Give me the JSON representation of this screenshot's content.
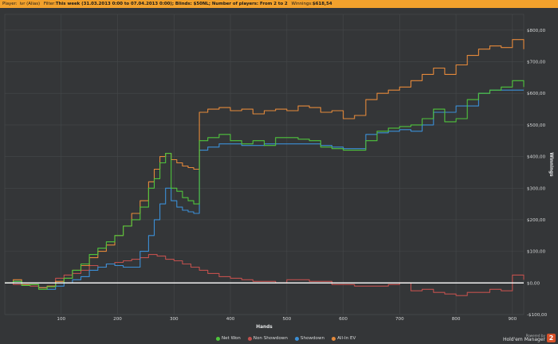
{
  "header": {
    "player_label": "Player:",
    "player_value": "ivr (Alias)",
    "filter_label": "Filter:",
    "filter_value": "This week (31.03.2013 0:00 to 07.04.2013 0:00); Blinds: $50NL; Number of players: From 2 to 2",
    "winnings_label": "Winnings:",
    "winnings_value": "$618,54"
  },
  "footer": {
    "powered_by": "Powered by",
    "brand": "Hold'em Manager",
    "logo_text": "2"
  },
  "colors": {
    "net_won": "#4fc43c",
    "non_showdown": "#c0504d",
    "showdown": "#3b8fd6",
    "all_in_ev": "#e5893a",
    "zero_line": "#ffffff",
    "grid": "#45484a"
  },
  "chart_data": {
    "type": "line",
    "title": "",
    "xlabel": "Hands",
    "ylabel": "Winnings",
    "xlim": [
      0,
      920
    ],
    "ylim": [
      -100,
      850
    ],
    "x_ticks": [
      100,
      200,
      300,
      400,
      500,
      600,
      700,
      800,
      900
    ],
    "x_tick_labels": [
      "100",
      "200",
      "300",
      "400",
      "500",
      "600",
      "700",
      "800",
      "900"
    ],
    "y_ticks": [
      -100,
      0,
      100,
      200,
      300,
      400,
      500,
      600,
      700,
      800
    ],
    "y_tick_labels": [
      "-$100,00",
      "$0,00",
      "$100,00",
      "$200,00",
      "$300,00",
      "$400,00",
      "$500,00",
      "$600,00",
      "$700,00",
      "$800,00"
    ],
    "grid": true,
    "legend_position": "bottom",
    "series": [
      {
        "name": "Net Won",
        "x": [
          0,
          15,
          30,
          45,
          60,
          75,
          90,
          105,
          120,
          135,
          150,
          165,
          180,
          195,
          210,
          225,
          240,
          255,
          265,
          275,
          285,
          295,
          305,
          315,
          325,
          335,
          345,
          360,
          380,
          400,
          420,
          440,
          460,
          480,
          500,
          520,
          540,
          560,
          580,
          600,
          620,
          640,
          660,
          680,
          700,
          720,
          740,
          760,
          780,
          800,
          820,
          840,
          860,
          880,
          900,
          920
        ],
        "y": [
          0,
          5,
          -8,
          -5,
          -20,
          -12,
          0,
          15,
          40,
          60,
          90,
          110,
          130,
          150,
          180,
          200,
          240,
          300,
          330,
          380,
          410,
          300,
          290,
          270,
          260,
          250,
          450,
          460,
          470,
          450,
          440,
          450,
          435,
          460,
          460,
          455,
          450,
          430,
          425,
          420,
          420,
          450,
          480,
          490,
          495,
          500,
          520,
          550,
          510,
          520,
          580,
          600,
          610,
          620,
          640,
          620
        ]
      },
      {
        "name": "Non Showdown",
        "x": [
          0,
          15,
          30,
          45,
          60,
          75,
          90,
          105,
          120,
          135,
          150,
          165,
          180,
          195,
          210,
          225,
          240,
          255,
          270,
          285,
          300,
          315,
          330,
          345,
          360,
          380,
          400,
          420,
          440,
          460,
          480,
          500,
          520,
          540,
          560,
          580,
          600,
          620,
          640,
          660,
          680,
          700,
          720,
          740,
          760,
          780,
          800,
          820,
          840,
          860,
          880,
          900,
          920
        ],
        "y": [
          0,
          -5,
          -8,
          -10,
          -15,
          -10,
          15,
          25,
          30,
          40,
          55,
          50,
          60,
          65,
          70,
          75,
          80,
          90,
          85,
          75,
          70,
          60,
          50,
          40,
          30,
          20,
          15,
          10,
          5,
          5,
          0,
          10,
          10,
          5,
          5,
          -5,
          -5,
          -10,
          -10,
          -10,
          -5,
          0,
          -25,
          -20,
          -30,
          -35,
          -40,
          -30,
          -30,
          -20,
          -25,
          25,
          10
        ]
      },
      {
        "name": "Showdown",
        "x": [
          0,
          15,
          30,
          45,
          60,
          75,
          90,
          105,
          120,
          135,
          150,
          165,
          180,
          195,
          210,
          225,
          240,
          255,
          265,
          275,
          285,
          295,
          305,
          315,
          325,
          335,
          345,
          360,
          380,
          400,
          420,
          440,
          460,
          480,
          500,
          520,
          540,
          560,
          580,
          600,
          620,
          640,
          660,
          680,
          700,
          720,
          740,
          760,
          780,
          800,
          820,
          840,
          860,
          880,
          900,
          920
        ],
        "y": [
          0,
          5,
          -5,
          -5,
          -15,
          -20,
          -10,
          0,
          10,
          20,
          40,
          50,
          60,
          55,
          50,
          50,
          100,
          150,
          200,
          250,
          300,
          260,
          240,
          230,
          225,
          220,
          420,
          430,
          440,
          440,
          435,
          435,
          440,
          440,
          440,
          440,
          440,
          435,
          430,
          425,
          425,
          470,
          475,
          480,
          485,
          480,
          500,
          540,
          540,
          560,
          560,
          600,
          610,
          610,
          610,
          610
        ]
      },
      {
        "name": "All-In EV",
        "x": [
          0,
          15,
          30,
          45,
          60,
          75,
          90,
          105,
          120,
          135,
          150,
          165,
          180,
          195,
          210,
          225,
          240,
          255,
          265,
          275,
          285,
          295,
          305,
          315,
          325,
          335,
          345,
          360,
          380,
          400,
          420,
          440,
          460,
          480,
          500,
          520,
          540,
          560,
          580,
          600,
          620,
          640,
          660,
          680,
          700,
          720,
          740,
          760,
          780,
          800,
          820,
          840,
          860,
          880,
          900,
          920
        ],
        "y": [
          0,
          10,
          -5,
          -5,
          -15,
          -10,
          5,
          15,
          40,
          55,
          80,
          100,
          120,
          150,
          180,
          220,
          260,
          320,
          360,
          400,
          410,
          390,
          380,
          370,
          365,
          360,
          540,
          550,
          555,
          545,
          550,
          535,
          545,
          550,
          545,
          560,
          555,
          540,
          545,
          520,
          530,
          580,
          600,
          610,
          620,
          640,
          660,
          680,
          660,
          690,
          720,
          740,
          750,
          745,
          770,
          740
        ]
      }
    ]
  }
}
